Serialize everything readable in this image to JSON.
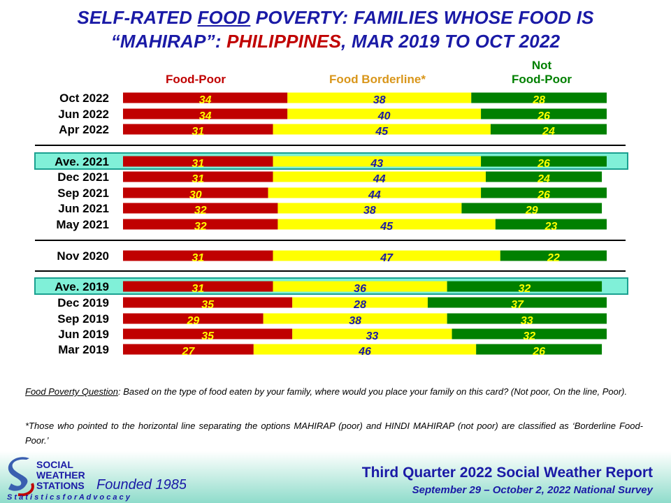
{
  "title": {
    "line1_a": "SELF-RATED ",
    "line1_b": "FOOD",
    "line1_c": " POVERTY: FAMILIES WHOSE FOOD IS",
    "line2_a": "“MAHIRAP”: ",
    "line2_b": "PHILIPPINES",
    "line2_c": ", MAR 2019 TO OCT 2022"
  },
  "column_headers": {
    "food_poor": "Food-Poor",
    "borderline": "Food Borderline*",
    "not_poor_l1": "Not",
    "not_poor_l2": "Food-Poor"
  },
  "colors": {
    "food_poor": "#c00000",
    "borderline": "#ffff00",
    "not_poor": "#008000",
    "average_highlight": "#80f0d8"
  },
  "chart_data": {
    "type": "bar",
    "orientation": "horizontal",
    "stacked": true,
    "xlim": [
      0,
      100
    ],
    "categories": [
      "Oct 2022",
      "Jun 2022",
      "Apr 2022",
      "Ave. 2021",
      "Dec 2021",
      "Sep 2021",
      "Jun 2021",
      "May 2021",
      "Nov 2020",
      "Ave. 2019",
      "Dec 2019",
      "Sep 2019",
      "Jun 2019",
      "Mar 2019"
    ],
    "series": [
      {
        "name": "Food-Poor",
        "values": [
          34,
          34,
          31,
          31,
          31,
          30,
          32,
          32,
          31,
          31,
          35,
          29,
          35,
          27
        ]
      },
      {
        "name": "Food Borderline*",
        "values": [
          38,
          40,
          45,
          43,
          44,
          44,
          38,
          45,
          47,
          36,
          28,
          38,
          33,
          46
        ]
      },
      {
        "name": "Not Food-Poor",
        "values": [
          28,
          26,
          24,
          26,
          24,
          26,
          29,
          23,
          22,
          32,
          37,
          33,
          32,
          26
        ]
      }
    ],
    "highlighted_rows": [
      "Ave. 2021",
      "Ave. 2019"
    ]
  },
  "notes": {
    "question_label": "Food Poverty Question",
    "question_text": ":  Based on the type of food eaten by your family, where would you place your family on this card?  (Not poor, On the line, Poor).",
    "footnote": "*Those who pointed to the horizontal line separating the options MAHIRAP (poor) and HINDI MAHIRAP (not poor) are classified as ‘Borderline Food-Poor.’"
  },
  "footer": {
    "logo_l1": "SOCIAL",
    "logo_l2": "WEATHER",
    "logo_l3": "STATIONS",
    "founded": "Founded 1985",
    "tagline": "S t a t i s t i c s   f o r   A d v o c a c y",
    "report_title": "Third Quarter 2022 Social Weather Report",
    "report_subtitle": "September 29 – October 2, 2022 National Survey"
  }
}
